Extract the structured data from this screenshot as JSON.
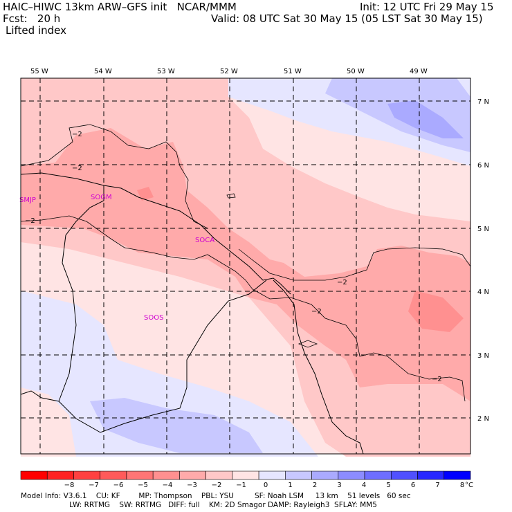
{
  "header": {
    "model_line": "HAIC–HIWC 13km ARW–GFS init   NCAR/MMM",
    "fcst_line": "Fcst:   20 h",
    "field_line": "Lifted index",
    "init_line": "Init: 12 UTC Fri 29 May 15",
    "valid_line": "Valid: 08 UTC Sat 30 May 15 (05 LST Sat 30 May 15)"
  },
  "map": {
    "lon_labels": [
      "55 W",
      "54 W",
      "53 W",
      "52 W",
      "51 W",
      "50 W",
      "49 W"
    ],
    "lat_labels": [
      "7 N",
      "6 N",
      "5 N",
      "4 N",
      "3 N",
      "2 N"
    ],
    "stations": [
      {
        "id": "SMJP",
        "label": "SMJP"
      },
      {
        "id": "SOGM",
        "label": "SOGM"
      },
      {
        "id": "SOCA",
        "label": "SOCA"
      },
      {
        "id": "SOOS",
        "label": "SOOS"
      }
    ],
    "contour_labels": [
      "−2",
      "−2",
      "−2",
      "−2",
      "−2",
      "−2"
    ]
  },
  "colorbar": {
    "ticks": [
      "−8",
      "−7",
      "−6",
      "−5",
      "−4",
      "−3",
      "−2",
      "−1",
      "0",
      "1",
      "2",
      "3",
      "4",
      "5",
      "6",
      "7",
      "8"
    ],
    "unit": "°C",
    "colors": [
      "#ff0000",
      "#ff2222",
      "#ff4040",
      "#ff5a5a",
      "#ff7575",
      "#ff9090",
      "#ffaaaa",
      "#ffc8c8",
      "#ffe4e4",
      "#e6e6ff",
      "#c8c8ff",
      "#aaaaff",
      "#8c8cff",
      "#6e6eff",
      "#5050ff",
      "#2828ff",
      "#0000ff"
    ]
  },
  "footer": {
    "line1": "Model Info: V3.6.1    CU: KF        MP: Thompson    PBL: YSU         SF: Noah LSM     13 km    51 levels   60 sec",
    "line2": "                     LW: RRTMG    SW: RRTMG   DIFF: full    KM: 2D Smagor DAMP: Rayleigh3  SFLAY: MM5"
  }
}
